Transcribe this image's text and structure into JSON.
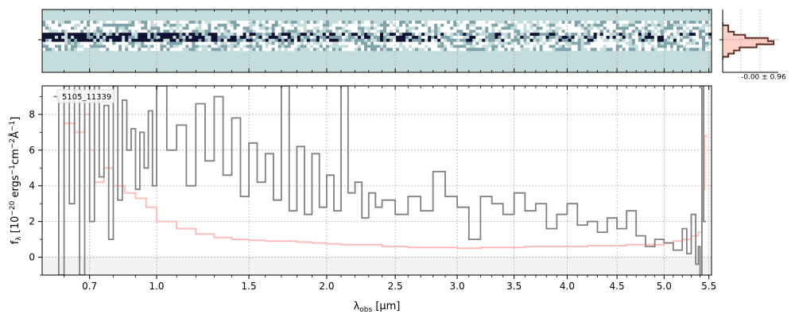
{
  "chart_data": [
    {
      "type": "heatmap",
      "panel": "2d-spectrum",
      "colormap": [
        "#ffffff",
        "#c5dcdc",
        "#7fa4ab",
        "#111133"
      ],
      "background_color": "#c5dcdc",
      "grid": true,
      "xticks_shared": true
    },
    {
      "type": "bar",
      "panel": "pixel-histogram",
      "annotation": "-0.00 ± 0.96",
      "fill_color": "#ffd0c8",
      "step_color": "#5a3020",
      "xlim": [
        -3,
        3
      ],
      "bins": [
        -3.0,
        -2.5,
        -2.0,
        -1.5,
        -1.0,
        -0.5,
        0.0,
        0.5,
        1.0,
        1.5,
        2.0,
        2.5
      ],
      "counts": [
        0,
        1,
        1,
        2,
        4,
        8,
        9,
        6,
        3,
        2,
        1,
        0
      ]
    },
    {
      "type": "line",
      "panel": "1d-spectrum",
      "label": "5105_11339",
      "xlabel": "λ_obs [μm]",
      "xlabel_parts": {
        "lambda": "λ",
        "sub": "obs",
        "rest": " [μm]"
      },
      "ylabel": "f_λ [10^-20 ergs^-1cm^-2Å^-1]",
      "ylabel_parts": {
        "f": "f",
        "fsub": "λ",
        "open": " [10",
        "e1": "−20",
        "unit1": " ergs",
        "e2": "−1",
        "unit2": "cm",
        "e3": "−2",
        "unit3": "Å",
        "e4": "−1",
        "close": "]"
      },
      "x_scale": "sqrt",
      "xlim": [
        0.52,
        5.53
      ],
      "ylim": [
        -1.0,
        9.6
      ],
      "xticks": [
        0.7,
        1.0,
        1.5,
        2.0,
        2.5,
        3.0,
        3.5,
        4.0,
        4.5,
        5.0,
        5.5
      ],
      "xtick_labels": [
        "0.7",
        "1.0",
        "1.5",
        "2.0",
        "2.5",
        "3.0",
        "3.5",
        "4.0",
        "4.5",
        "5.0",
        "5.5"
      ],
      "yticks": [
        0,
        2,
        4,
        6,
        8
      ],
      "grid": true,
      "series": [
        {
          "role": "model",
          "color": "#ffbbb8",
          "x": [
            0.6,
            0.64,
            0.68,
            0.7,
            0.72,
            0.76,
            0.8,
            0.85,
            0.9,
            0.95,
            1.0,
            1.1,
            1.2,
            1.3,
            1.4,
            1.5,
            1.6,
            1.7,
            1.8,
            1.9,
            2.0,
            2.1,
            2.2,
            2.4,
            2.6,
            2.8,
            3.0,
            3.2,
            3.4,
            3.6,
            3.8,
            4.0,
            4.2,
            4.4,
            4.6,
            4.8,
            5.0,
            5.1,
            5.2,
            5.3,
            5.38,
            5.42,
            5.45
          ],
          "y": [
            7.5,
            7.0,
            8.0,
            6.0,
            4.2,
            5.0,
            4.0,
            3.6,
            3.3,
            2.8,
            2.0,
            1.6,
            1.3,
            1.1,
            1.0,
            0.95,
            0.9,
            0.9,
            0.85,
            0.8,
            0.75,
            0.7,
            0.7,
            0.6,
            0.55,
            0.55,
            0.5,
            0.55,
            0.55,
            0.6,
            0.6,
            0.6,
            0.65,
            0.65,
            0.7,
            0.7,
            0.8,
            0.9,
            1.0,
            1.2,
            1.4,
            3.8,
            6.8
          ]
        },
        {
          "role": "data",
          "color": "#808080",
          "x": [
            0.56,
            0.58,
            0.6,
            0.62,
            0.64,
            0.66,
            0.68,
            0.7,
            0.72,
            0.74,
            0.76,
            0.78,
            0.8,
            0.82,
            0.84,
            0.86,
            0.88,
            0.9,
            0.92,
            0.94,
            0.96,
            0.98,
            1.0,
            1.05,
            1.1,
            1.15,
            1.2,
            1.25,
            1.3,
            1.35,
            1.4,
            1.45,
            1.5,
            1.55,
            1.6,
            1.65,
            1.7,
            1.75,
            1.8,
            1.85,
            1.9,
            1.95,
            2.0,
            2.05,
            2.1,
            2.15,
            2.2,
            2.25,
            2.3,
            2.35,
            2.4,
            2.5,
            2.6,
            2.7,
            2.8,
            2.9,
            3.0,
            3.1,
            3.2,
            3.3,
            3.4,
            3.5,
            3.6,
            3.7,
            3.8,
            3.9,
            4.0,
            4.1,
            4.2,
            4.3,
            4.4,
            4.5,
            4.6,
            4.7,
            4.8,
            4.9,
            5.0,
            5.1,
            5.2,
            5.25,
            5.3,
            5.35,
            5.38,
            5.4,
            5.42,
            5.44
          ],
          "y": [
            9.0,
            -1.0,
            9.6,
            3.0,
            9.6,
            -1.0,
            9.6,
            2.0,
            9.6,
            4.5,
            8.5,
            1.0,
            9.6,
            3.2,
            8.8,
            6.0,
            7.2,
            3.8,
            7.0,
            5.0,
            8.2,
            4.0,
            9.6,
            6.0,
            7.4,
            4.0,
            8.6,
            5.4,
            9.0,
            4.6,
            7.8,
            3.4,
            6.4,
            4.2,
            5.8,
            3.2,
            9.6,
            2.6,
            6.2,
            2.4,
            5.8,
            2.8,
            4.6,
            2.6,
            9.6,
            3.6,
            4.2,
            2.2,
            3.6,
            2.8,
            3.2,
            2.4,
            3.4,
            2.6,
            4.8,
            3.4,
            2.8,
            1.0,
            3.4,
            3.0,
            2.4,
            3.6,
            2.6,
            3.0,
            1.6,
            2.4,
            3.0,
            1.8,
            2.0,
            1.4,
            2.2,
            1.6,
            2.6,
            1.2,
            0.6,
            1.0,
            0.8,
            0.4,
            1.6,
            0.2,
            2.4,
            -0.4,
            0.6,
            -1.0,
            9.6,
            2.0
          ]
        }
      ]
    }
  ]
}
